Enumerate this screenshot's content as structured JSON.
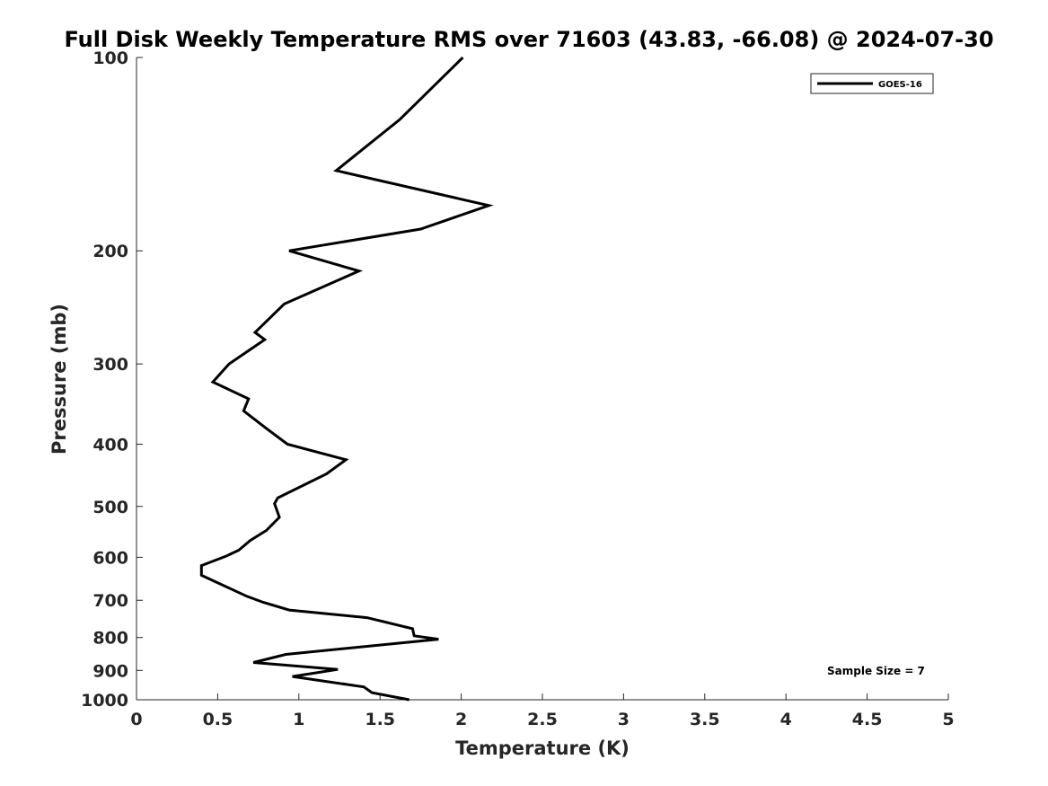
{
  "chart_data": {
    "type": "line",
    "title": "Full Disk Weekly Temperature RMS over 71603 (43.83, -66.08) @ 2024-07-30",
    "xlabel": "Temperature (K)",
    "ylabel": "Pressure (mb)",
    "xlim": [
      0,
      5
    ],
    "ylim": [
      100,
      1000
    ],
    "y_scale": "log",
    "y_reversed": true,
    "grid": false,
    "x_ticks": [
      0,
      0.5,
      1,
      1.5,
      2,
      2.5,
      3,
      3.5,
      4,
      4.5,
      5
    ],
    "x_tick_labels": [
      "0",
      "0.5",
      "1",
      "1.5",
      "2",
      "2.5",
      "3",
      "3.5",
      "4",
      "4.5",
      "5"
    ],
    "y_ticks": [
      100,
      200,
      300,
      400,
      500,
      600,
      700,
      800,
      900,
      1000
    ],
    "y_tick_labels": [
      "100",
      "200",
      "300",
      "400",
      "500",
      "600",
      "700",
      "800",
      "900",
      "1000"
    ],
    "legend": {
      "position": "top-right",
      "entries": [
        "GOES-16"
      ]
    },
    "annotations": [
      "Sample Size = 7"
    ],
    "series": [
      {
        "name": "GOES-16",
        "color": "#000000",
        "points": [
          [
            2.01,
            100
          ],
          [
            1.62,
            125
          ],
          [
            1.23,
            150
          ],
          [
            2.17,
            170
          ],
          [
            1.75,
            185
          ],
          [
            0.94,
            200
          ],
          [
            1.37,
            215
          ],
          [
            0.91,
            242
          ],
          [
            0.73,
            268
          ],
          [
            0.79,
            275
          ],
          [
            0.57,
            300
          ],
          [
            0.47,
            320
          ],
          [
            0.69,
            340
          ],
          [
            0.66,
            355
          ],
          [
            0.8,
            378
          ],
          [
            0.93,
            400
          ],
          [
            1.29,
            423
          ],
          [
            1.17,
            445
          ],
          [
            0.87,
            485
          ],
          [
            0.85,
            495
          ],
          [
            0.88,
            520
          ],
          [
            0.8,
            545
          ],
          [
            0.7,
            565
          ],
          [
            0.63,
            585
          ],
          [
            0.55,
            598
          ],
          [
            0.4,
            618
          ],
          [
            0.4,
            640
          ],
          [
            0.68,
            690
          ],
          [
            0.78,
            705
          ],
          [
            0.94,
            725
          ],
          [
            1.42,
            745
          ],
          [
            1.7,
            775
          ],
          [
            1.71,
            795
          ],
          [
            1.86,
            805
          ],
          [
            0.92,
            850
          ],
          [
            0.72,
            875
          ],
          [
            1.24,
            897
          ],
          [
            0.96,
            920
          ],
          [
            1.4,
            955
          ],
          [
            1.45,
            975
          ],
          [
            1.68,
            1000
          ]
        ]
      }
    ]
  }
}
